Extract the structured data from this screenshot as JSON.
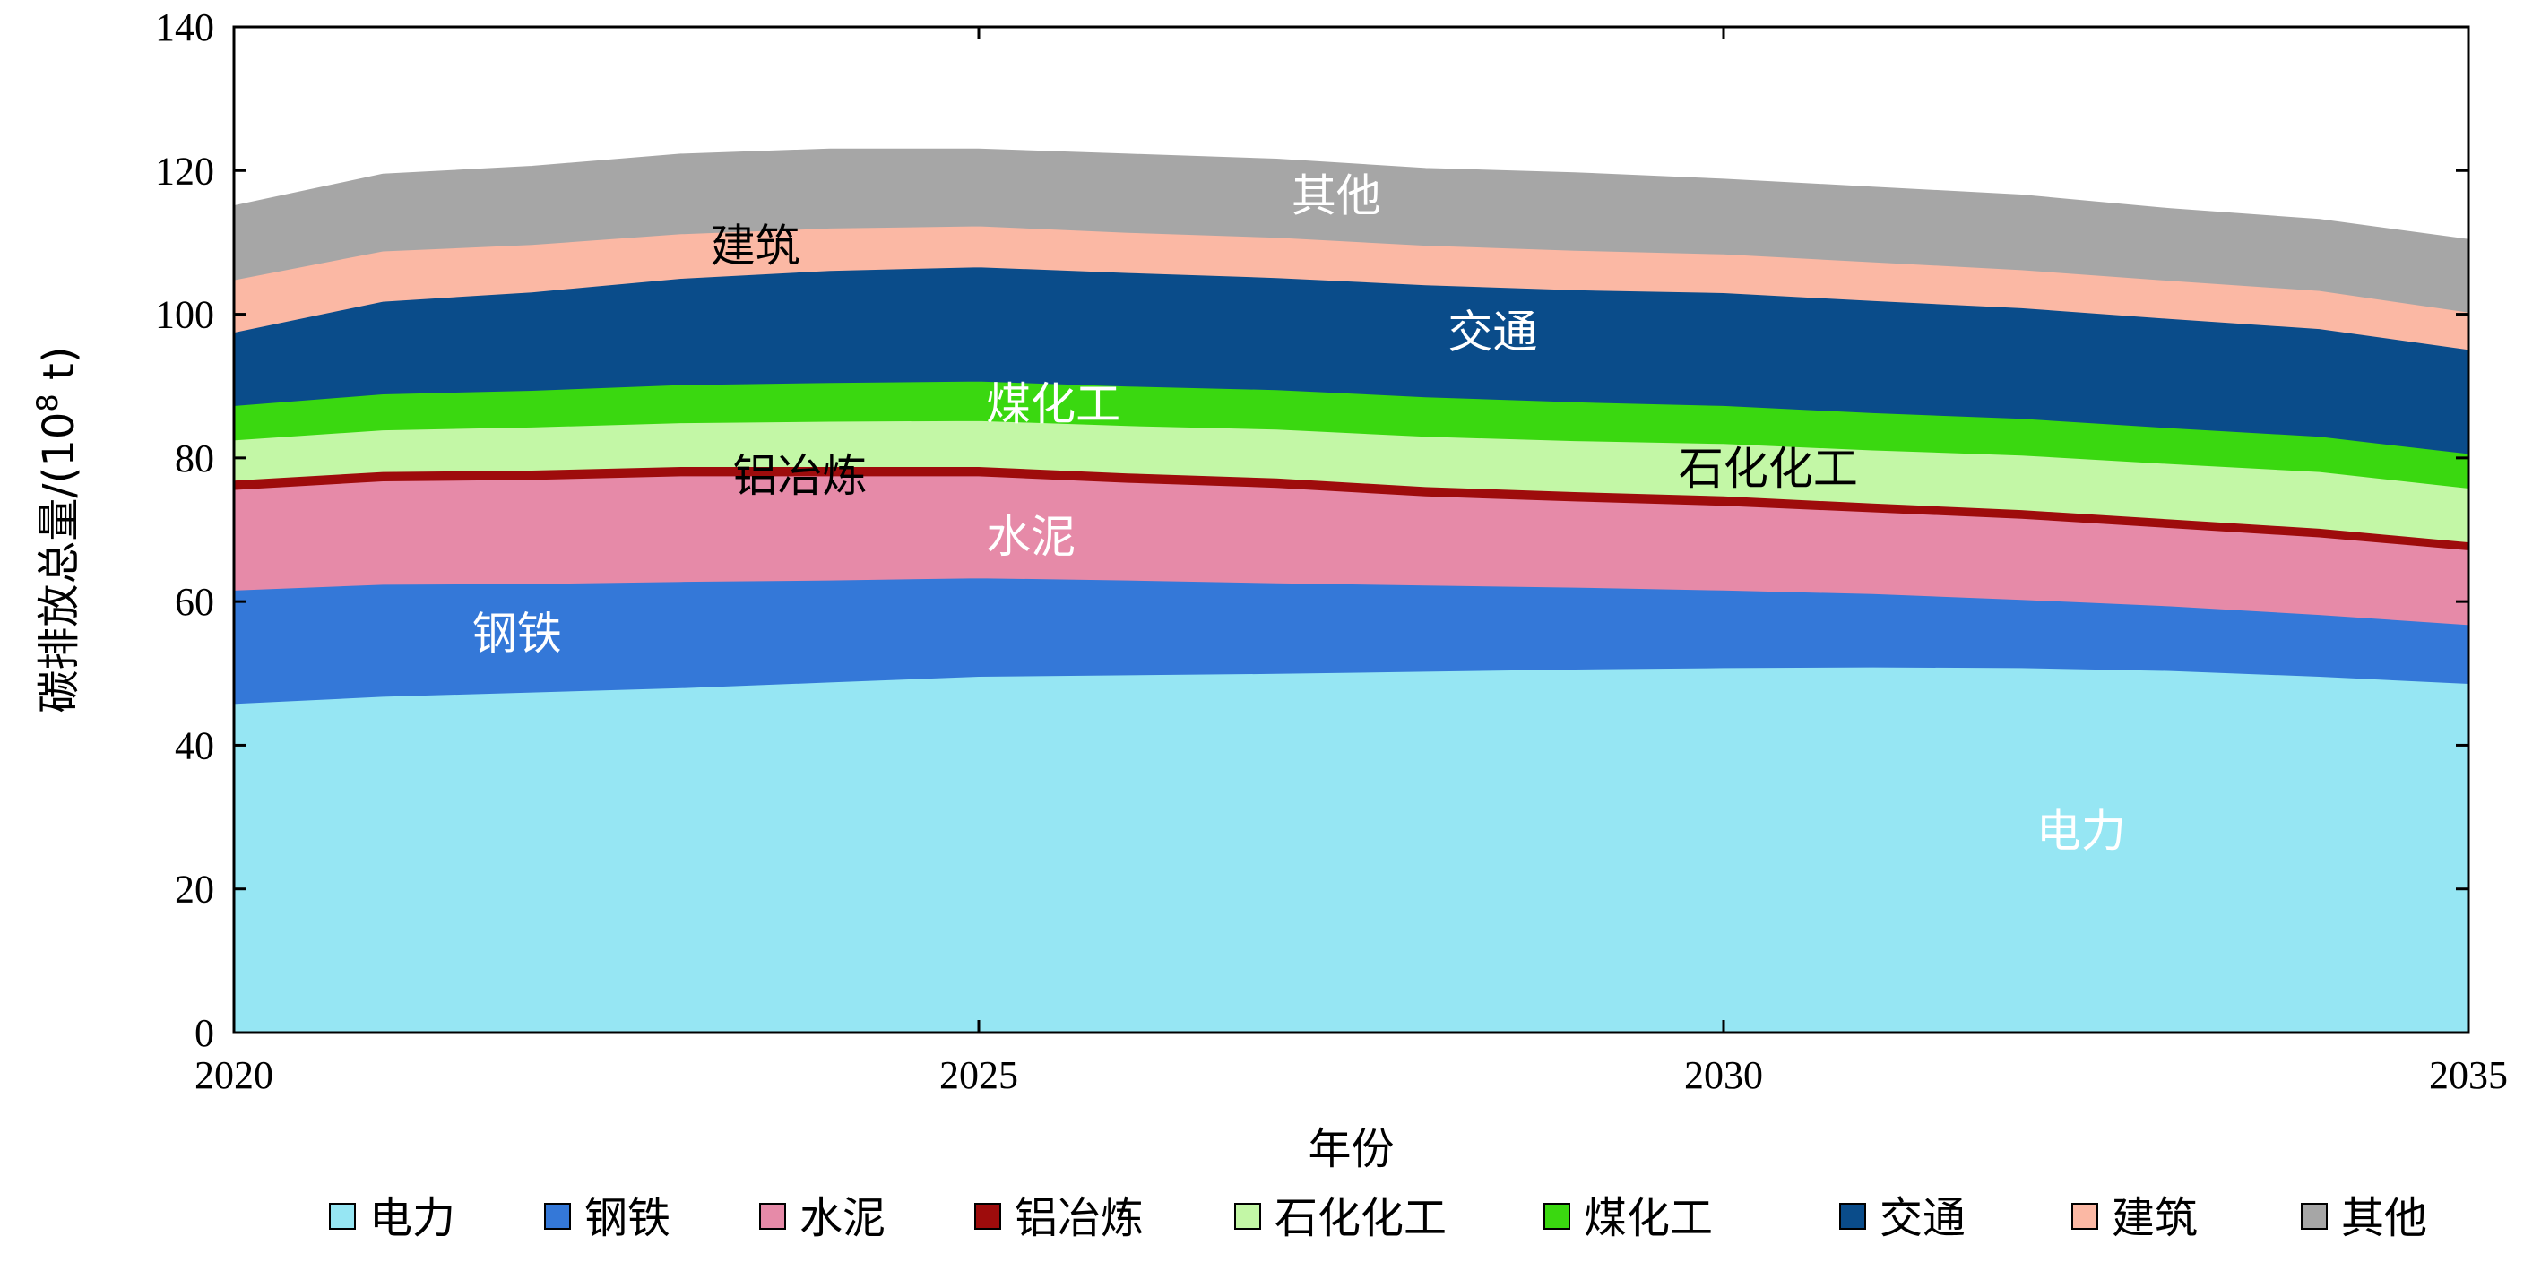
{
  "chart_data": {
    "type": "area",
    "stacked": true,
    "title": "",
    "xlabel": "年份",
    "ylabel": "碳排放总量/(10",
    "ylabel_sup": "8",
    "ylabel_suffix": " t)",
    "xlim": [
      2020,
      2035
    ],
    "ylim": [
      0,
      140
    ],
    "x_ticks": [
      "2020",
      "2025",
      "2030",
      "2035"
    ],
    "y_ticks": [
      "0",
      "20",
      "40",
      "60",
      "80",
      "100",
      "120",
      "140"
    ],
    "x": [
      2020,
      2021,
      2022,
      2023,
      2024,
      2025,
      2026,
      2027,
      2028,
      2029,
      2030,
      2031,
      2032,
      2033,
      2034,
      2035
    ],
    "series": [
      {
        "name": "电力",
        "color": "#96e6f3",
        "values": [
          45.8,
          46.8,
          47.4,
          48.0,
          48.8,
          49.6,
          49.8,
          50.0,
          50.3,
          50.6,
          50.8,
          50.9,
          50.8,
          50.4,
          49.6,
          48.6
        ]
      },
      {
        "name": "钢铁",
        "color": "#3478d8",
        "values": [
          15.8,
          15.6,
          15.1,
          14.8,
          14.2,
          13.7,
          13.2,
          12.6,
          12.0,
          11.4,
          10.8,
          10.2,
          9.5,
          9.0,
          8.6,
          8.2
        ]
      },
      {
        "name": "水泥",
        "color": "#e68aa8",
        "values": [
          14.0,
          14.4,
          14.5,
          14.7,
          14.5,
          14.2,
          13.6,
          13.3,
          12.4,
          12.0,
          11.8,
          11.4,
          11.3,
          10.9,
          10.8,
          10.4
        ]
      },
      {
        "name": "铝冶炼",
        "color": "#9e0c0c",
        "values": [
          1.3,
          1.3,
          1.3,
          1.3,
          1.3,
          1.3,
          1.3,
          1.3,
          1.3,
          1.3,
          1.3,
          1.2,
          1.2,
          1.2,
          1.2,
          1.1
        ]
      },
      {
        "name": "石化化工",
        "color": "#c3f7a6",
        "values": [
          5.6,
          5.8,
          6.0,
          6.1,
          6.3,
          6.4,
          6.6,
          6.8,
          7.0,
          7.1,
          7.3,
          7.4,
          7.6,
          7.7,
          7.9,
          7.5
        ]
      },
      {
        "name": "煤化工",
        "color": "#3ad810",
        "values": [
          4.8,
          5.0,
          5.1,
          5.3,
          5.4,
          5.5,
          5.5,
          5.5,
          5.5,
          5.4,
          5.3,
          5.2,
          5.1,
          5.0,
          4.9,
          4.8
        ]
      },
      {
        "name": "交通",
        "color": "#0a4c8a",
        "values": [
          10.2,
          12.9,
          13.7,
          14.8,
          15.6,
          15.9,
          15.8,
          15.6,
          15.6,
          15.6,
          15.7,
          15.6,
          15.4,
          15.2,
          15.0,
          14.5
        ]
      },
      {
        "name": "建筑",
        "color": "#fbb8a4",
        "values": [
          7.3,
          7.0,
          6.6,
          6.2,
          5.9,
          5.7,
          5.6,
          5.6,
          5.5,
          5.5,
          5.4,
          5.4,
          5.3,
          5.3,
          5.3,
          5.2
        ]
      },
      {
        "name": "其他",
        "color": "#a6a6a6",
        "values": [
          10.3,
          10.7,
          10.9,
          11.1,
          11.0,
          10.7,
          10.9,
          10.9,
          10.7,
          10.8,
          10.4,
          10.4,
          10.4,
          10.0,
          9.9,
          10.1
        ]
      }
    ],
    "annotations": [
      {
        "text": "电力",
        "x": 2032.4,
        "y": 28,
        "color": "#ffffff"
      },
      {
        "text": "钢铁",
        "x": 2021.9,
        "y": 55.5,
        "color": "#ffffff"
      },
      {
        "text": "水泥",
        "x": 2025.35,
        "y": 69,
        "color": "#ffffff"
      },
      {
        "text": "铝冶炼",
        "x": 2023.8,
        "y": 77.5,
        "color": "#000000"
      },
      {
        "text": "石化化工",
        "x": 2030.3,
        "y": 78.5,
        "color": "#000000"
      },
      {
        "text": "煤化工",
        "x": 2025.5,
        "y": 87.5,
        "color": "#ffffff"
      },
      {
        "text": "交通",
        "x": 2028.45,
        "y": 97.5,
        "color": "#ffffff"
      },
      {
        "text": "建筑",
        "x": 2023.5,
        "y": 109.5,
        "color": "#000000"
      },
      {
        "text": "其他",
        "x": 2027.4,
        "y": 116.5,
        "color": "#ffffff"
      }
    ],
    "legend_position": "bottom",
    "grid": false
  }
}
